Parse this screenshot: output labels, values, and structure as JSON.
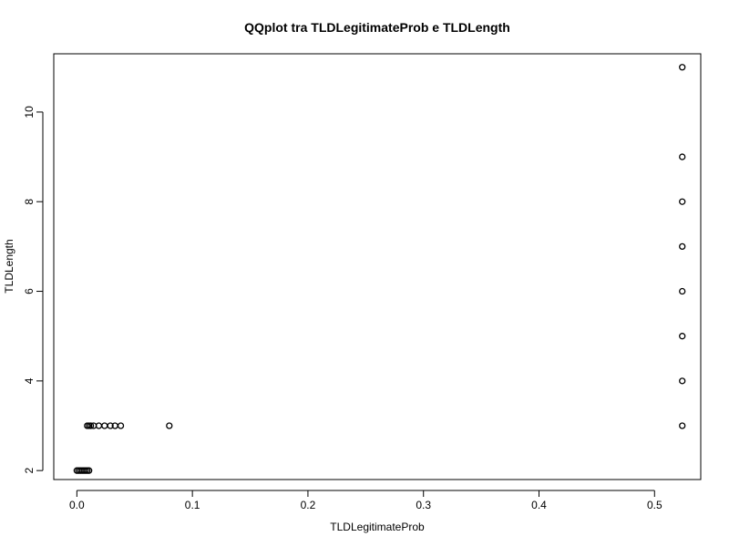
{
  "chart_data": {
    "type": "scatter",
    "title": "QQplot tra TLDLegitimateProb e TLDLength",
    "xlabel": "TLDLegitimateProb",
    "ylabel": "TLDLength",
    "xlim": [
      -0.02,
      0.54
    ],
    "ylim": [
      1.8,
      11.3
    ],
    "xticks": [
      0.0,
      0.1,
      0.2,
      0.3,
      0.4,
      0.5
    ],
    "xtick_labels": [
      "0.0",
      "0.1",
      "0.2",
      "0.3",
      "0.4",
      "0.5"
    ],
    "yticks": [
      2,
      4,
      6,
      8,
      10
    ],
    "ytick_labels": [
      "2",
      "4",
      "6",
      "8",
      "10"
    ],
    "grid": false,
    "legend": "none",
    "marker": "open-circle",
    "points": [
      {
        "x": 0.0,
        "y": 2
      },
      {
        "x": 0.0015,
        "y": 2
      },
      {
        "x": 0.003,
        "y": 2
      },
      {
        "x": 0.0045,
        "y": 2
      },
      {
        "x": 0.006,
        "y": 2
      },
      {
        "x": 0.0075,
        "y": 2
      },
      {
        "x": 0.009,
        "y": 2
      },
      {
        "x": 0.0105,
        "y": 2
      },
      {
        "x": 0.009,
        "y": 3
      },
      {
        "x": 0.0105,
        "y": 3
      },
      {
        "x": 0.012,
        "y": 3
      },
      {
        "x": 0.0145,
        "y": 3
      },
      {
        "x": 0.019,
        "y": 3
      },
      {
        "x": 0.024,
        "y": 3
      },
      {
        "x": 0.029,
        "y": 3
      },
      {
        "x": 0.033,
        "y": 3
      },
      {
        "x": 0.038,
        "y": 3
      },
      {
        "x": 0.08,
        "y": 3
      },
      {
        "x": 0.524,
        "y": 3
      },
      {
        "x": 0.524,
        "y": 4
      },
      {
        "x": 0.524,
        "y": 5
      },
      {
        "x": 0.524,
        "y": 6
      },
      {
        "x": 0.524,
        "y": 7
      },
      {
        "x": 0.524,
        "y": 8
      },
      {
        "x": 0.524,
        "y": 9
      },
      {
        "x": 0.524,
        "y": 11
      }
    ]
  }
}
